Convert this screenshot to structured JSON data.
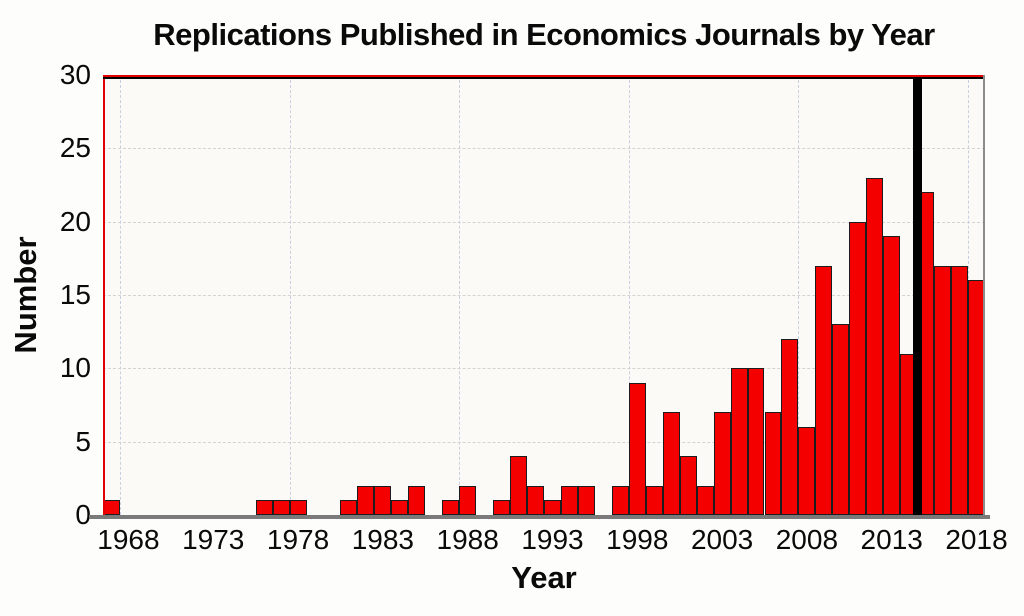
{
  "chart_data": {
    "type": "bar",
    "title": "Replications Published in Economics Journals by Year",
    "xlabel": "Year",
    "ylabel": "Number",
    "xlim": [
      1966.5,
      2018.5
    ],
    "ylim": [
      0,
      30
    ],
    "x_ticks": [
      1968,
      1973,
      1978,
      1983,
      1988,
      1993,
      1998,
      2003,
      2008,
      2013,
      2018
    ],
    "y_ticks": [
      0,
      5,
      10,
      15,
      20,
      25,
      30
    ],
    "grid_y_values": [
      5,
      10,
      15,
      20,
      25
    ],
    "grid_x_values": [
      1967.5,
      1977.5,
      1987.5,
      1997.5,
      2007.5,
      2017.5
    ],
    "grid_style": "dashed",
    "legend": null,
    "marker_line_x": 2014.5,
    "years": [
      1967,
      1968,
      1969,
      1970,
      1971,
      1972,
      1973,
      1974,
      1975,
      1976,
      1977,
      1978,
      1979,
      1980,
      1981,
      1982,
      1983,
      1984,
      1985,
      1986,
      1987,
      1988,
      1989,
      1990,
      1991,
      1992,
      1993,
      1994,
      1995,
      1996,
      1997,
      1998,
      1999,
      2000,
      2001,
      2002,
      2003,
      2004,
      2005,
      2006,
      2007,
      2008,
      2009,
      2010,
      2011,
      2012,
      2013,
      2014,
      2015,
      2016,
      2017,
      2018
    ],
    "values": [
      1,
      0,
      0,
      0,
      0,
      0,
      0,
      0,
      0,
      1,
      1,
      1,
      0,
      0,
      1,
      2,
      2,
      1,
      2,
      0,
      1,
      2,
      0,
      1,
      4,
      2,
      1,
      2,
      2,
      0,
      2,
      9,
      2,
      7,
      4,
      2,
      7,
      10,
      10,
      7,
      12,
      6,
      17,
      13,
      20,
      23,
      19,
      11,
      22,
      17,
      17,
      16
    ],
    "colors": {
      "bar_fill": "#f50000",
      "bar_border": "#1c1c1c",
      "marker_line": "#000000",
      "plot_border_red": "#e30000",
      "plot_border_gray": "#8c8c8c",
      "axis_line_gray": "#7a7a7a",
      "plot_background": "#fbfaf6",
      "text": "#0a0a0a"
    }
  }
}
